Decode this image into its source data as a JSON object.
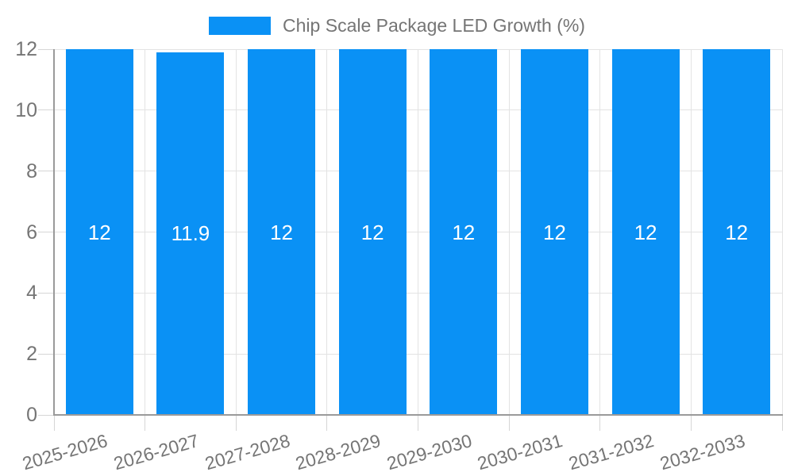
{
  "legend": {
    "label": "Chip Scale Package LED Growth (%)"
  },
  "chart_data": {
    "type": "bar",
    "title": "Chip Scale Package LED Growth (%)",
    "categories": [
      "2025-2026",
      "2026-2027",
      "2027-2028",
      "2028-2029",
      "2029-2030",
      "2030-2031",
      "2031-2032",
      "2032-2033"
    ],
    "values": [
      12,
      11.9,
      12,
      12,
      12,
      12,
      12,
      12
    ],
    "bar_labels": [
      "12",
      "11.9",
      "12",
      "12",
      "12",
      "12",
      "12",
      "12"
    ],
    "xlabel": "",
    "ylabel": "",
    "ylim": [
      0,
      12
    ],
    "yticks": [
      0,
      2,
      4,
      6,
      8,
      10,
      12
    ],
    "grid": true,
    "legend_position": "top",
    "colors": {
      "bar": "#0a91f5",
      "bar_label": "#ffffff",
      "axis_text": "#757575",
      "gridline": "#e3e3e3",
      "axis_line": "#9a9a9a",
      "tick": "#d6d6d6",
      "background": "#ffffff"
    }
  }
}
